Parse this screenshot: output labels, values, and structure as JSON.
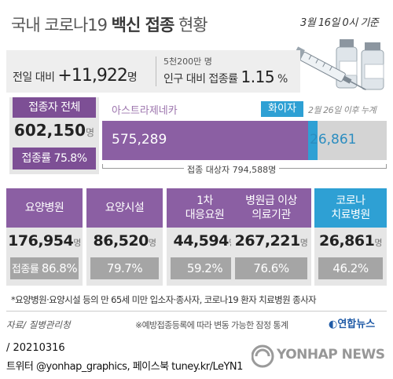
{
  "header": {
    "title_light": "국내 코로나19 ",
    "title_bold": "백신 접종",
    "title_light2": " 현황",
    "date": "3월 16일 0시 기준"
  },
  "summary": {
    "prev_label": "전일 대비 ",
    "prev_value": "+11,922",
    "prev_unit": "명",
    "population": "5천200만 명",
    "rate_label": "인구 대비 접종률 ",
    "rate_value": "1.15",
    "rate_unit": " %"
  },
  "total": {
    "label": "접종자 전체",
    "value": "602,150",
    "unit": "명",
    "rate": "접종률 75.8%"
  },
  "vaccines": {
    "az_label": "아스트라제네카",
    "pf_label": "화이자",
    "pf_note": "2월 26일 이후 누계",
    "target": "접종 대상자 794,588명"
  },
  "chart_data": {
    "type": "bar",
    "categories": [
      "아스트라제네카",
      "화이자"
    ],
    "values": [
      575289,
      26861
    ],
    "value_labels": [
      "575,289",
      "26,861"
    ],
    "total": 794588,
    "colors": [
      "#8b5fa3",
      "#2ea0d4"
    ]
  },
  "categories": [
    {
      "head": "요양병원",
      "value": "176,954",
      "unit": "명",
      "rate_prefix": "접종률 ",
      "rate": "86.8%",
      "color": "purple"
    },
    {
      "head": "요양시설",
      "value": "86,520",
      "unit": "명",
      "rate_prefix": "",
      "rate": "79.7%",
      "color": "purple"
    },
    {
      "head": "1차\n대응요원",
      "value": "44,594",
      "unit": "명",
      "rate_prefix": "",
      "rate": "59.2%",
      "color": "purple"
    },
    {
      "head": "병원급 이상\n의료기관",
      "value": "267,221",
      "unit": "명",
      "rate_prefix": "",
      "rate": "76.6%",
      "color": "purple"
    },
    {
      "head": "코로나\n치료병원",
      "value": "26,861",
      "unit": "명",
      "rate_prefix": "",
      "rate": "46.2%",
      "color": "blue"
    }
  ],
  "footer": {
    "footnote": "*요양병원·요양시설 등의 만 65세 미만 입소자·종사자, 코로나19 환자 치료병원 종사자",
    "source": "자료/ 질병관리청",
    "note": "※예방접종등록에 따라 변동 가능한 잠정 통계",
    "logo": "연합뉴스",
    "date_line": "/ 20210316",
    "twitter": "트위터 @yonhap_graphics, 페이스북 tuney.kr/LeYN1",
    "watermark": "YONHAP NEWS"
  }
}
